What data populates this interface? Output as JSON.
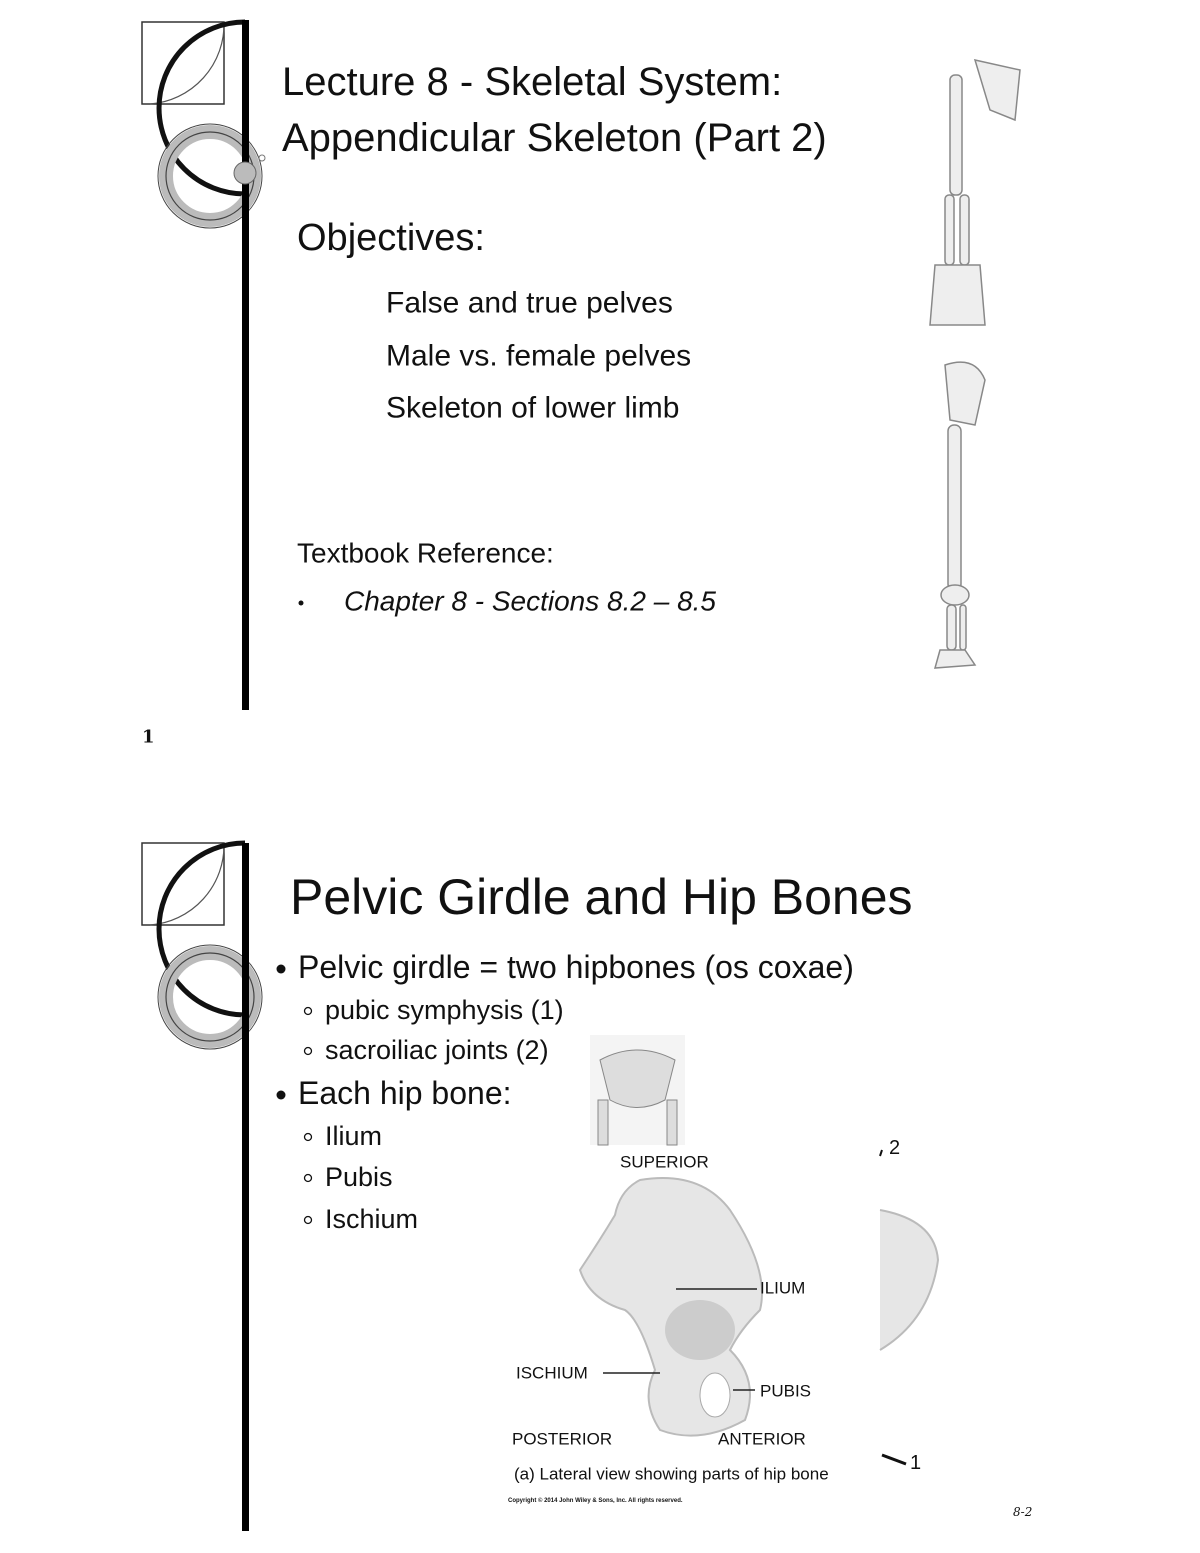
{
  "slides": [
    {
      "title_lines": [
        "Lecture 8 - Skeletal System:",
        "Appendicular Skeleton (Part 2)"
      ],
      "objectives_heading": "Objectives:",
      "objectives": [
        "False and true pelves",
        "Male vs. female pelves",
        "Skeleton of lower limb"
      ],
      "reference_heading": "Textbook Reference:",
      "reference": "Chapter 8 - Sections 8.2 – 8.5",
      "page_number": "1"
    },
    {
      "title": "Pelvic Girdle and Hip Bones",
      "bullets": [
        {
          "text": "Pelvic girdle = two hipbones (os coxae)",
          "sub": [
            "pubic symphysis (1)",
            "sacroiliac joints (2)"
          ]
        },
        {
          "text": "Each hip bone:",
          "sub": [
            "Ilium",
            "Pubis",
            "Ischium"
          ]
        }
      ],
      "figure": {
        "superior": "SUPERIOR",
        "ilium": "ILIUM",
        "ischium": "ISCHIUM",
        "pubis": "PUBIS",
        "posterior": "POSTERIOR",
        "anterior": "ANTERIOR",
        "caption": "(a) Lateral view showing  parts of hip bone",
        "copyright": "Copyright © 2014 John Wiley & Sons, Inc. All rights reserved.",
        "callout_2": "2",
        "callout_1": "1"
      },
      "page_label": "8-2"
    }
  ]
}
